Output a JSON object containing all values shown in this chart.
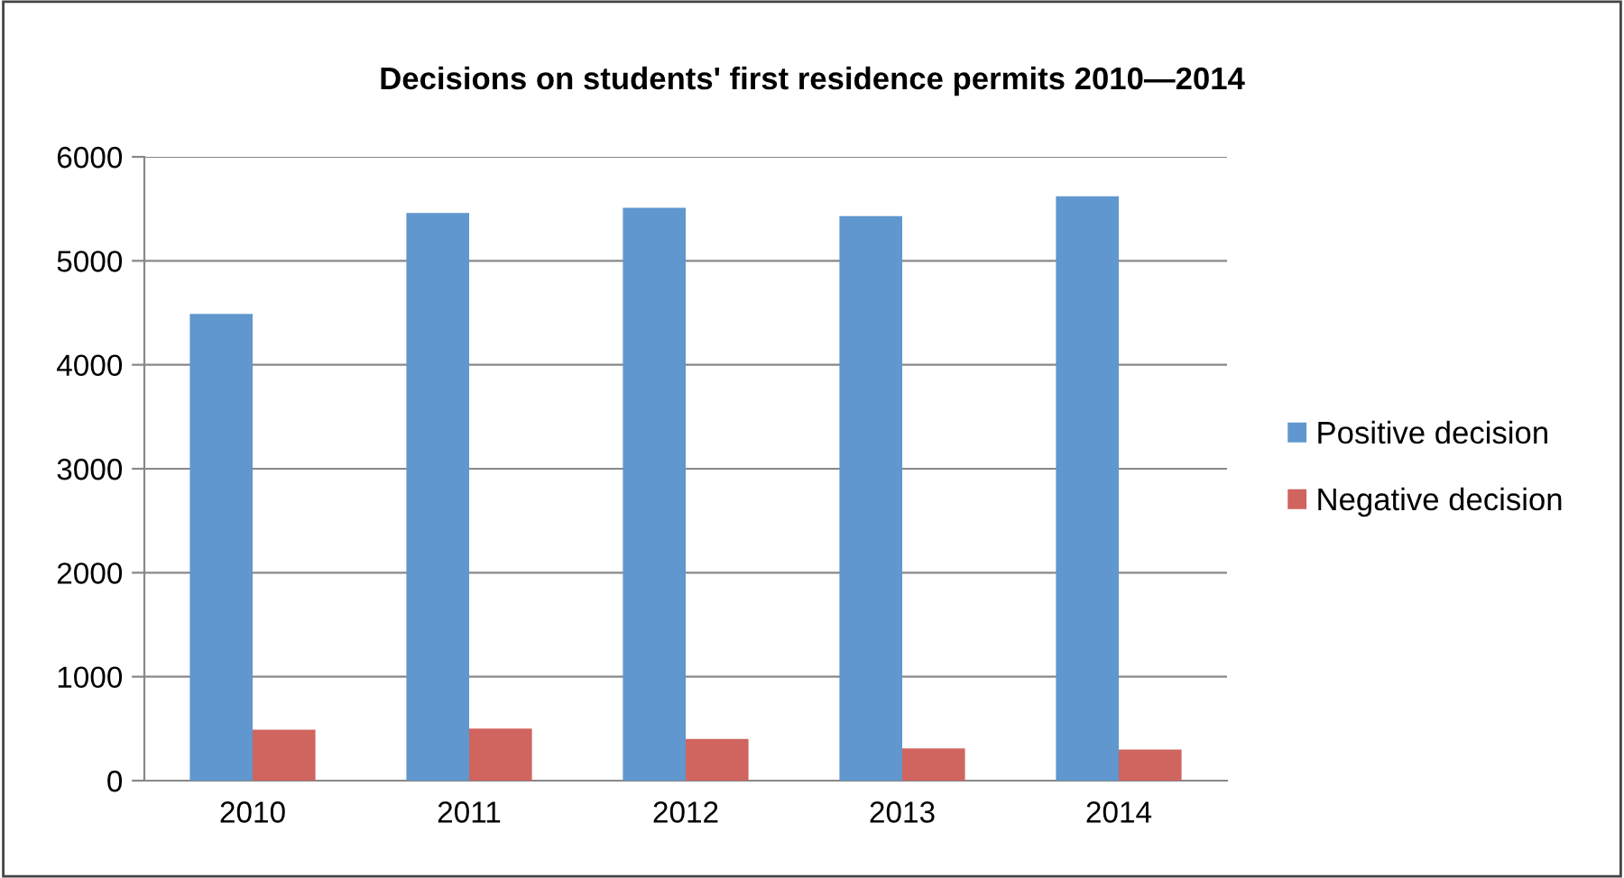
{
  "chart_data": {
    "type": "bar",
    "title": "Decisions on students' first residence permits 2010—2014",
    "categories": [
      "2010",
      "2011",
      "2012",
      "2013",
      "2014"
    ],
    "series": [
      {
        "name": "Positive decision",
        "color": "#6097ce",
        "values": [
          4490,
          5460,
          5510,
          5430,
          5620
        ]
      },
      {
        "name": "Negative decision",
        "color": "#d0645e",
        "values": [
          490,
          500,
          400,
          310,
          300
        ]
      }
    ],
    "ylim": [
      0,
      6000
    ],
    "yticks": [
      0,
      1000,
      2000,
      3000,
      4000,
      5000,
      6000
    ],
    "grid": "y",
    "legend": "right"
  }
}
